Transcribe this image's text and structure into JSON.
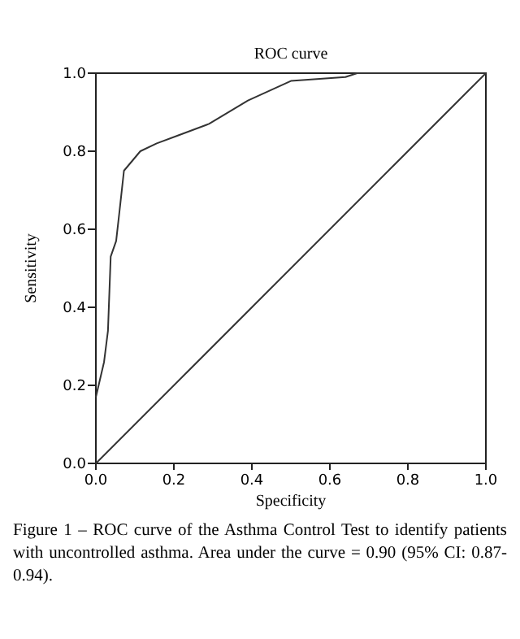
{
  "chart_data": {
    "type": "line",
    "title": "ROC curve",
    "xlabel": "Specificity",
    "ylabel": "Sensitivity",
    "xlim": [
      0,
      1
    ],
    "ylim": [
      0,
      1
    ],
    "xticks": [
      {
        "value": 0,
        "label": "0.0"
      },
      {
        "value": 0.2,
        "label": "0.2"
      },
      {
        "value": 0.4,
        "label": "0.4"
      },
      {
        "value": 0.6,
        "label": "0.6"
      },
      {
        "value": 0.8,
        "label": "0.8"
      },
      {
        "value": 1,
        "label": "1.0"
      }
    ],
    "yticks": [
      {
        "value": 0,
        "label": "0.0"
      },
      {
        "value": 0.2,
        "label": "0.2"
      },
      {
        "value": 0.4,
        "label": "0.4"
      },
      {
        "value": 0.6,
        "label": "0.6"
      },
      {
        "value": 0.8,
        "label": "0.8"
      },
      {
        "value": 1,
        "label": "1.0"
      }
    ],
    "series": [
      {
        "color": "#333333",
        "x": [
          0,
          0.021,
          0.031,
          0.038,
          0.052,
          0.061,
          0.072,
          0.114,
          0.156,
          0.21,
          0.29,
          0.39,
          0.5,
          0.64,
          0.67,
          1
        ],
        "values": [
          0.17,
          0.26,
          0.34,
          0.53,
          0.57,
          0.65,
          0.75,
          0.8,
          0.82,
          0.84,
          0.87,
          0.93,
          0.98,
          0.99,
          1,
          1
        ]
      },
      {
        "color": "#333333",
        "x": [
          0,
          1
        ],
        "values": [
          0,
          1
        ]
      }
    ],
    "grid": false,
    "marker": "none",
    "line_style": "solid",
    "annotations": [
      "Figure 1 – ROC curve of the Asthma Control Test to identify patients with uncontrolled asthma. Area under the curve = 0.90 (95% CI: 0.87-0.94)."
    ]
  }
}
